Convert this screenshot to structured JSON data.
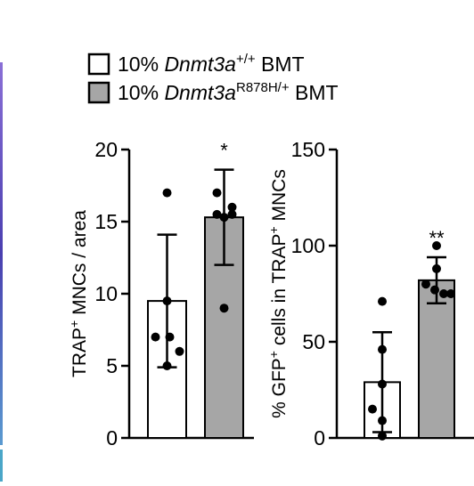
{
  "legend": [
    {
      "prefix": "10% ",
      "gene": "Dnmt3a",
      "sup": "+/+",
      "suffix": " BMT",
      "color": "#ffffff"
    },
    {
      "prefix": "10% ",
      "gene": "Dnmt3a",
      "sup": "R878H/+",
      "suffix": " BMT",
      "color": "#a6a6a6"
    }
  ],
  "chart_data": [
    {
      "type": "bar",
      "categories": [
        "10% Dnmt3a+/+ BMT",
        "10% Dnmt3aR878H/+ BMT"
      ],
      "ylabel": {
        "pre": "TRAP",
        "sup": "+",
        "post": " MNCs / area"
      },
      "ylim": [
        0,
        20
      ],
      "yticks": [
        0,
        5,
        10,
        15,
        20
      ],
      "values": [
        9.5,
        15.3
      ],
      "error": [
        4.6,
        3.3
      ],
      "points": [
        [
          17,
          9.5,
          7,
          7,
          6,
          5
        ],
        [
          17,
          16,
          15.5,
          15.5,
          9,
          15.3
        ]
      ],
      "significance": [
        "",
        "*"
      ],
      "colors": [
        "#ffffff",
        "#a6a6a6"
      ]
    },
    {
      "type": "bar",
      "categories": [
        "10% Dnmt3a+/+ BMT",
        "10% Dnmt3aR878H/+ BMT"
      ],
      "ylabel": {
        "pre": "% GFP",
        "sup": "+",
        "mid": " cells in TRAP",
        "sup2": "+",
        "post": " MNCs"
      },
      "ylim": [
        0,
        150
      ],
      "yticks": [
        0,
        50,
        100,
        150
      ],
      "values": [
        29,
        82
      ],
      "error": [
        26,
        12
      ],
      "points": [
        [
          71,
          46,
          28,
          15,
          9,
          1
        ],
        [
          100,
          88,
          80,
          75,
          75,
          77
        ]
      ],
      "significance": [
        "",
        "**"
      ],
      "colors": [
        "#ffffff",
        "#a6a6a6"
      ]
    }
  ]
}
